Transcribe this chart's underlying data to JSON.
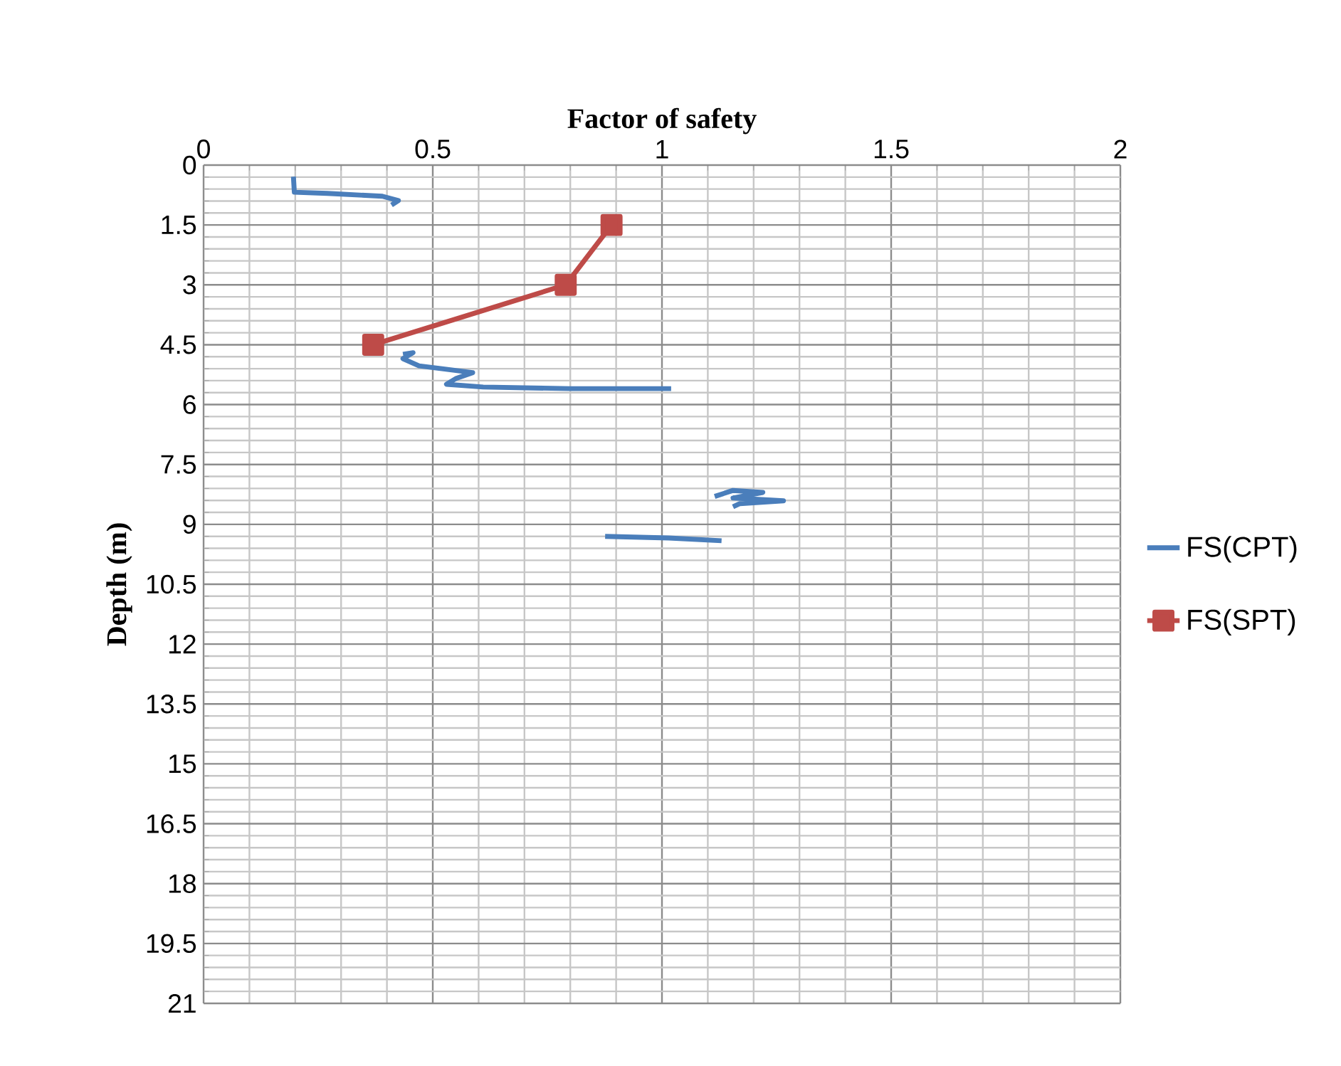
{
  "chart_data": {
    "type": "line",
    "xlabel": "Factor of safety",
    "ylabel": "Depth (m)",
    "xlim": [
      0,
      2
    ],
    "xticks": [
      0,
      0.5,
      1,
      1.5,
      2
    ],
    "ylim": [
      21,
      0
    ],
    "yticks": [
      0,
      1.5,
      3,
      4.5,
      6,
      7.5,
      9,
      10.5,
      12,
      13.5,
      15,
      16.5,
      18,
      19.5,
      21
    ],
    "grid": true,
    "legend": "right",
    "line_style": "solid",
    "series": [
      {
        "name": "FS(CPT)",
        "color": "#4a7ebb",
        "marker": "none",
        "x": [
          0.196,
          0.198,
          0.27,
          0.39,
          0.425,
          0.41,
          null,
          0.435,
          0.457,
          0.435,
          0.47,
          0.52,
          0.587,
          0.55,
          0.53,
          0.61,
          0.8,
          1.02,
          null,
          1.115,
          1.155,
          1.22,
          1.155,
          1.265,
          1.17,
          1.155,
          null,
          0.876,
          1.015,
          1.13
        ],
        "values": [
          0.29,
          0.68,
          0.71,
          0.78,
          0.89,
          1.0,
          null,
          4.74,
          4.7,
          4.85,
          5.03,
          5.1,
          5.2,
          5.35,
          5.49,
          5.56,
          5.6,
          5.6,
          null,
          8.3,
          8.15,
          8.2,
          8.34,
          8.41,
          8.48,
          8.56,
          null,
          9.3,
          9.34,
          9.41
        ]
      },
      {
        "name": "FS(SPT)",
        "color": "#be4b48",
        "marker": "square",
        "x": [
          0.89,
          0.79,
          0.37
        ],
        "values": [
          1.5,
          3,
          4.5
        ]
      }
    ]
  }
}
